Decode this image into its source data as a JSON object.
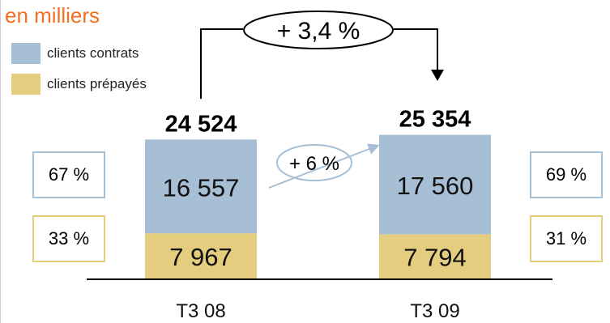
{
  "unit_label": "en milliers",
  "legend": [
    {
      "label": "clients contrats",
      "color": "#a7bfd4"
    },
    {
      "label": "clients prépayés",
      "color": "#e5cd7f"
    }
  ],
  "growth_total": "+ 3,4 %",
  "growth_contracts": "+ 6 %",
  "percent_boxes": {
    "q3_08": {
      "contracts": "67 %",
      "prepaid": "33 %"
    },
    "q3_09": {
      "contracts": "69 %",
      "prepaid": "31 %"
    }
  },
  "colors": {
    "contracts": "#a7bfd4",
    "prepaid": "#e5cd7f",
    "accent": "#f26f21"
  },
  "chart_data": {
    "type": "bar",
    "stacked": true,
    "categories": [
      "T3 08",
      "T3 09"
    ],
    "series": [
      {
        "name": "clients prépayés",
        "values": [
          7967,
          7794
        ],
        "labels": [
          "7 967",
          "7 794"
        ]
      },
      {
        "name": "clients contrats",
        "values": [
          16557,
          17560
        ],
        "labels": [
          "16 557",
          "17 560"
        ]
      }
    ],
    "totals": [
      24524,
      25354
    ],
    "total_labels": [
      "24 524",
      "25 354"
    ]
  }
}
